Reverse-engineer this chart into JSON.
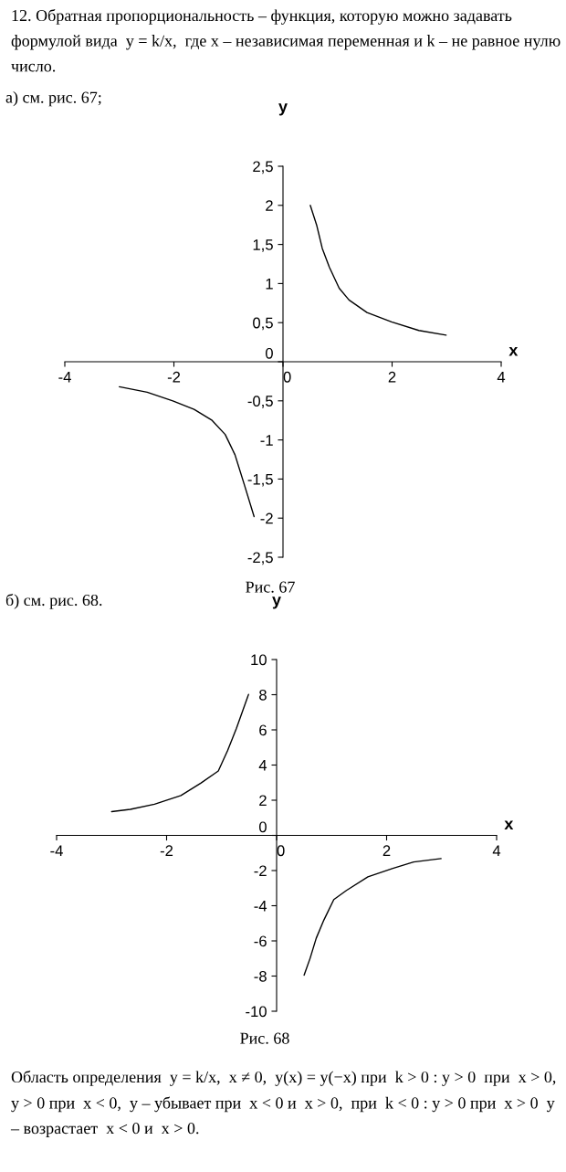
{
  "chart_data": [
    {
      "type": "line",
      "xlabel": "x",
      "ylabel": "y",
      "xlim": [
        -4,
        4
      ],
      "ylim": [
        -2.5,
        2.5
      ],
      "xticks": [
        -4,
        -2,
        0,
        2,
        4
      ],
      "yticks": [
        {
          "value": 2.5,
          "label": "2,5"
        },
        2,
        {
          "value": 1.5,
          "label": "1,5"
        },
        1,
        {
          "value": 0.5,
          "label": "0,5"
        },
        0,
        {
          "value": -0.5,
          "label": "-0,5"
        },
        -1,
        {
          "value": -1.5,
          "label": "-1,5"
        },
        -2,
        {
          "value": -2.5,
          "label": "-2,5"
        }
      ],
      "series": [
        {
          "color": "#000000",
          "x": [
            0.5,
            0.62,
            0.72,
            0.85,
            1.03,
            1.21,
            1.54,
            1.99,
            2.49,
            2.99
          ],
          "values": [
            2.0,
            1.74,
            1.45,
            1.21,
            0.94,
            0.79,
            0.63,
            0.51,
            0.4,
            0.34
          ]
        },
        {
          "color": "#000000",
          "x": [
            -3.0,
            -2.49,
            -2.02,
            -1.63,
            -1.3,
            -1.06,
            -0.88,
            -0.71,
            -0.53
          ],
          "values": [
            -0.32,
            -0.39,
            -0.5,
            -0.61,
            -0.75,
            -0.93,
            -1.19,
            -1.57,
            -1.98
          ]
        }
      ],
      "annotations": [
        "12. Обратная пропорциональность – функция, которую можно задавать формулой вида  y = k/x,  где x – независимая переменная и k – не равное нулю число.",
        "а) см. рис. 67;",
        "Рис. 67"
      ]
    },
    {
      "type": "line",
      "xlabel": "x",
      "ylabel": "y",
      "xlim": [
        -4,
        4
      ],
      "ylim": [
        -10,
        10
      ],
      "xticks": [
        -4,
        -2,
        0,
        2,
        4
      ],
      "yticks": [
        10,
        8,
        6,
        4,
        2,
        0,
        -2,
        -4,
        -6,
        -8,
        -10
      ],
      "series": [
        {
          "color": "#000000",
          "x": [
            -3.0,
            -2.66,
            -2.22,
            -1.74,
            -1.38,
            -1.06,
            -0.89,
            -0.73,
            -0.51
          ],
          "values": [
            1.35,
            1.48,
            1.77,
            2.27,
            2.97,
            3.66,
            4.83,
            6.09,
            8.02
          ]
        },
        {
          "color": "#000000",
          "x": [
            0.5,
            0.61,
            0.72,
            0.86,
            1.04,
            1.27,
            1.66,
            2.1,
            2.49,
            2.99
          ],
          "values": [
            -7.95,
            -6.98,
            -5.85,
            -4.81,
            -3.65,
            -3.13,
            -2.36,
            -1.89,
            -1.51,
            -1.32
          ]
        }
      ],
      "annotations": [
        "б) см. рис. 68.",
        "Рис. 68",
        "Область определения  y = k/x,  x ≠ 0,  y(x) = y(−x) при  k > 0 : y > 0  при  x > 0,  y > 0 при  x < 0,  y – убывает при  x < 0 и  x > 0,  при  k < 0 : y > 0 при  x > 0  y – возрастает  x < 0 и  x > 0."
      ]
    }
  ]
}
